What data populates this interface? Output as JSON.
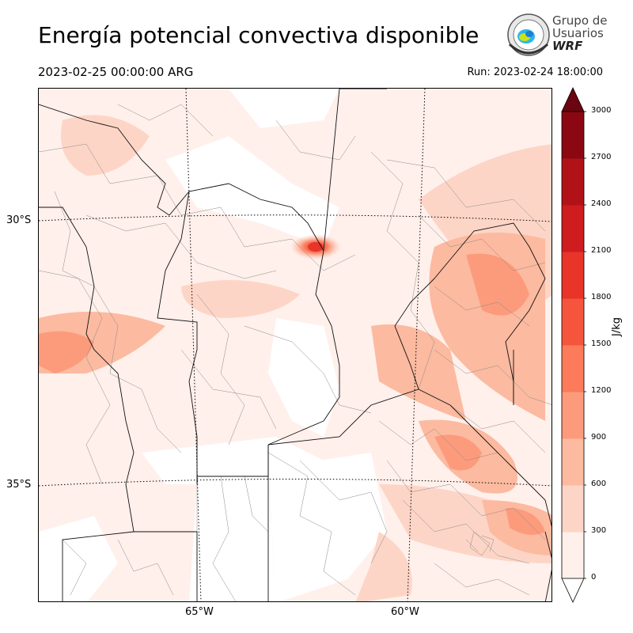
{
  "header": {
    "title": "Energía potencial convectiva disponible",
    "valid_time": "2023-02-25 00:00:00 ARG",
    "run_time": "Run: 2023-02-24 18:00:00"
  },
  "logo": {
    "line1": "Grupo de",
    "line2": "Usuarios",
    "line3": "WRF"
  },
  "map": {
    "lat_labels": [
      "30°S",
      "35°S"
    ],
    "lon_labels": [
      "65°W",
      "60°W"
    ]
  },
  "colorbar": {
    "unit": "J/kg",
    "ticks": [
      "0",
      "300",
      "600",
      "900",
      "1200",
      "1500",
      "1800",
      "2100",
      "2400",
      "2700",
      "3000"
    ],
    "colors": [
      "#fff0eb",
      "#fdd5c6",
      "#fcbaa0",
      "#fc9b7c",
      "#fb7b5b",
      "#f5553d",
      "#e83429",
      "#cf1c1f",
      "#b11218",
      "#8b0812",
      "#6b0510"
    ],
    "over_color": "#6b0510",
    "under_color": "#ffffff"
  }
}
